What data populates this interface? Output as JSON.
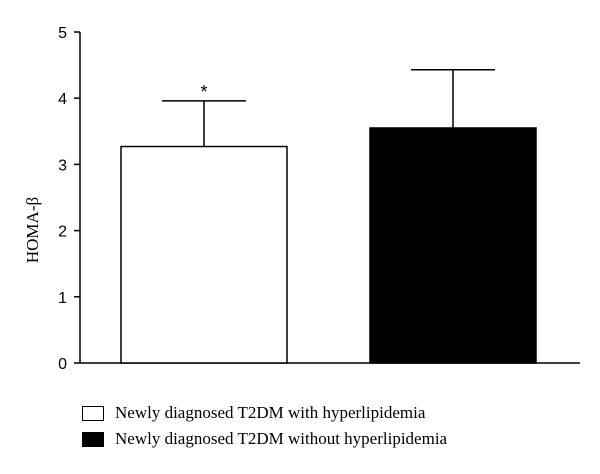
{
  "chart_data": {
    "type": "bar",
    "categories": [
      "Newly diagnosed T2DM with hyperlipidemia",
      "Newly diagnosed T2DM without hyperlipidemia"
    ],
    "values": [
      3.27,
      3.55
    ],
    "error_upper": [
      0.69,
      0.88
    ],
    "annotations": [
      "*",
      ""
    ],
    "colors": [
      "#ffffff",
      "#000000"
    ],
    "ylabel": "HOMA-β",
    "ylim": [
      0,
      5
    ],
    "yticks": [
      0,
      1,
      2,
      3,
      4,
      5
    ],
    "ytick_labels": [
      "0",
      "1",
      "2",
      "3",
      "4",
      "5"
    ],
    "grid": false,
    "legend_position": "bottom-left"
  },
  "legend": {
    "items": [
      {
        "label": "Newly diagnosed T2DM with hyperlipidemia",
        "color": "#ffffff"
      },
      {
        "label": "Newly diagnosed T2DM without hyperlipidemia",
        "color": "#000000"
      }
    ]
  }
}
